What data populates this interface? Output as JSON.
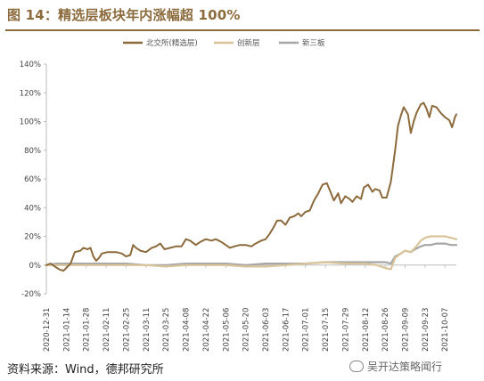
{
  "figure": {
    "title": "图 14：精选层板块年内涨幅超 100%",
    "source": "资料来源：Wind，德邦研究所",
    "watermark": "吴开达策略闻行",
    "watermark_icon": "wechat-icon"
  },
  "colors": {
    "beijing": "#8b6a3c",
    "chuangxin": "#d8c49a",
    "xinsanban": "#a6a6a6",
    "axis": "#bdbdbd",
    "title": "#8b6a3c"
  },
  "chart_data": {
    "type": "line",
    "title": "",
    "xlabel": "",
    "ylabel": "",
    "ylim": [
      -20,
      140
    ],
    "yticks": [
      -20,
      0,
      20,
      40,
      60,
      80,
      100,
      120,
      140
    ],
    "ytick_labels": [
      "-20%",
      "0%",
      "20%",
      "40%",
      "60%",
      "80%",
      "100%",
      "120%",
      "140%"
    ],
    "xlim": [
      "2020-12-31",
      "2021-10-15"
    ],
    "xticks": [
      "2020-12-31",
      "2021-01-14",
      "2021-01-28",
      "2021-02-11",
      "2021-02-25",
      "2021-03-11",
      "2021-03-25",
      "2021-04-08",
      "2021-04-22",
      "2021-05-06",
      "2021-05-20",
      "2021-06-03",
      "2021-06-17",
      "2021-07-01",
      "2021-07-15",
      "2021-07-29",
      "2021-08-12",
      "2021-08-26",
      "2021-09-09",
      "2021-09-23",
      "2021-10-07"
    ],
    "grid": false,
    "legend_position": "top-right",
    "series": [
      {
        "name": "北交所(精选层)",
        "color_key": "beijing",
        "points": [
          [
            "2020-12-31",
            0
          ],
          [
            "2021-01-03",
            1
          ],
          [
            "2021-01-06",
            -1
          ],
          [
            "2021-01-09",
            -3
          ],
          [
            "2021-01-12",
            -4
          ],
          [
            "2021-01-14",
            -2
          ],
          [
            "2021-01-17",
            1
          ],
          [
            "2021-01-20",
            9
          ],
          [
            "2021-01-24",
            10
          ],
          [
            "2021-01-26",
            12
          ],
          [
            "2021-01-29",
            11
          ],
          [
            "2021-01-31",
            12
          ],
          [
            "2021-02-02",
            6
          ],
          [
            "2021-02-04",
            3
          ],
          [
            "2021-02-06",
            5
          ],
          [
            "2021-02-08",
            8
          ],
          [
            "2021-02-12",
            9
          ],
          [
            "2021-02-18",
            9
          ],
          [
            "2021-02-22",
            8
          ],
          [
            "2021-02-25",
            6
          ],
          [
            "2021-02-28",
            7
          ],
          [
            "2021-03-02",
            14
          ],
          [
            "2021-03-04",
            12
          ],
          [
            "2021-03-07",
            10
          ],
          [
            "2021-03-11",
            9
          ],
          [
            "2021-03-15",
            12
          ],
          [
            "2021-03-18",
            13
          ],
          [
            "2021-03-21",
            15
          ],
          [
            "2021-03-24",
            11
          ],
          [
            "2021-03-28",
            12
          ],
          [
            "2021-04-01",
            13
          ],
          [
            "2021-04-05",
            13
          ],
          [
            "2021-04-08",
            18
          ],
          [
            "2021-04-11",
            17
          ],
          [
            "2021-04-15",
            14
          ],
          [
            "2021-04-18",
            16
          ],
          [
            "2021-04-22",
            18
          ],
          [
            "2021-04-26",
            17
          ],
          [
            "2021-04-29",
            18
          ],
          [
            "2021-05-03",
            16
          ],
          [
            "2021-05-06",
            14
          ],
          [
            "2021-05-09",
            12
          ],
          [
            "2021-05-12",
            13
          ],
          [
            "2021-05-16",
            14
          ],
          [
            "2021-05-20",
            14
          ],
          [
            "2021-05-24",
            13
          ],
          [
            "2021-05-27",
            15
          ],
          [
            "2021-05-31",
            17
          ],
          [
            "2021-06-03",
            18
          ],
          [
            "2021-06-06",
            22
          ],
          [
            "2021-06-09",
            27
          ],
          [
            "2021-06-11",
            31
          ],
          [
            "2021-06-14",
            31
          ],
          [
            "2021-06-17",
            28
          ],
          [
            "2021-06-20",
            33
          ],
          [
            "2021-06-23",
            34
          ],
          [
            "2021-06-26",
            36
          ],
          [
            "2021-06-28",
            34
          ],
          [
            "2021-07-01",
            37
          ],
          [
            "2021-07-04",
            38
          ],
          [
            "2021-07-07",
            45
          ],
          [
            "2021-07-10",
            50
          ],
          [
            "2021-07-13",
            56
          ],
          [
            "2021-07-16",
            57
          ],
          [
            "2021-07-19",
            50
          ],
          [
            "2021-07-21",
            45
          ],
          [
            "2021-07-24",
            50
          ],
          [
            "2021-07-26",
            43
          ],
          [
            "2021-07-29",
            48
          ],
          [
            "2021-08-01",
            46
          ],
          [
            "2021-08-03",
            44
          ],
          [
            "2021-08-06",
            48
          ],
          [
            "2021-08-09",
            46
          ],
          [
            "2021-08-11",
            54
          ],
          [
            "2021-08-14",
            56
          ],
          [
            "2021-08-17",
            51
          ],
          [
            "2021-08-19",
            53
          ],
          [
            "2021-08-22",
            52
          ],
          [
            "2021-08-24",
            47
          ],
          [
            "2021-08-27",
            47
          ],
          [
            "2021-08-30",
            58
          ],
          [
            "2021-09-02",
            80
          ],
          [
            "2021-09-04",
            97
          ],
          [
            "2021-09-06",
            104
          ],
          [
            "2021-09-08",
            110
          ],
          [
            "2021-09-11",
            105
          ],
          [
            "2021-09-13",
            92
          ],
          [
            "2021-09-15",
            100
          ],
          [
            "2021-09-17",
            106
          ],
          [
            "2021-09-20",
            112
          ],
          [
            "2021-09-22",
            113
          ],
          [
            "2021-09-24",
            109
          ],
          [
            "2021-09-26",
            103
          ],
          [
            "2021-09-28",
            111
          ],
          [
            "2021-10-01",
            110
          ],
          [
            "2021-10-04",
            106
          ],
          [
            "2021-10-07",
            103
          ],
          [
            "2021-10-10",
            101
          ],
          [
            "2021-10-12",
            96
          ],
          [
            "2021-10-14",
            103
          ],
          [
            "2021-10-15",
            105
          ]
        ]
      },
      {
        "name": "创新层",
        "color_key": "chuangxin",
        "points": [
          [
            "2020-12-31",
            0
          ],
          [
            "2021-01-14",
            0
          ],
          [
            "2021-01-28",
            0
          ],
          [
            "2021-02-11",
            0
          ],
          [
            "2021-02-25",
            0
          ],
          [
            "2021-03-11",
            0
          ],
          [
            "2021-03-25",
            -1
          ],
          [
            "2021-04-08",
            0
          ],
          [
            "2021-04-22",
            0
          ],
          [
            "2021-05-06",
            0
          ],
          [
            "2021-05-20",
            -1
          ],
          [
            "2021-06-03",
            -1
          ],
          [
            "2021-06-17",
            0
          ],
          [
            "2021-07-01",
            1
          ],
          [
            "2021-07-15",
            2
          ],
          [
            "2021-07-29",
            1
          ],
          [
            "2021-08-12",
            1
          ],
          [
            "2021-08-20",
            0
          ],
          [
            "2021-08-26",
            -2
          ],
          [
            "2021-08-30",
            -3
          ],
          [
            "2021-09-02",
            5
          ],
          [
            "2021-09-06",
            8
          ],
          [
            "2021-09-09",
            10
          ],
          [
            "2021-09-13",
            9
          ],
          [
            "2021-09-16",
            12
          ],
          [
            "2021-09-20",
            17
          ],
          [
            "2021-09-23",
            19
          ],
          [
            "2021-09-27",
            20
          ],
          [
            "2021-10-01",
            20
          ],
          [
            "2021-10-07",
            20
          ],
          [
            "2021-10-11",
            19
          ],
          [
            "2021-10-15",
            18
          ]
        ]
      },
      {
        "name": "新三板",
        "color_key": "xinsanban",
        "points": [
          [
            "2020-12-31",
            0
          ],
          [
            "2021-01-07",
            1
          ],
          [
            "2021-01-14",
            1
          ],
          [
            "2021-01-28",
            1
          ],
          [
            "2021-02-11",
            1
          ],
          [
            "2021-02-25",
            1
          ],
          [
            "2021-03-11",
            0
          ],
          [
            "2021-03-25",
            0
          ],
          [
            "2021-04-08",
            1
          ],
          [
            "2021-04-22",
            1
          ],
          [
            "2021-05-06",
            1
          ],
          [
            "2021-05-20",
            0
          ],
          [
            "2021-06-03",
            1
          ],
          [
            "2021-06-17",
            1
          ],
          [
            "2021-07-01",
            1
          ],
          [
            "2021-07-15",
            2
          ],
          [
            "2021-07-29",
            2
          ],
          [
            "2021-08-12",
            2
          ],
          [
            "2021-08-26",
            2
          ],
          [
            "2021-08-30",
            1
          ],
          [
            "2021-09-02",
            6
          ],
          [
            "2021-09-06",
            8
          ],
          [
            "2021-09-09",
            10
          ],
          [
            "2021-09-13",
            9
          ],
          [
            "2021-09-16",
            11
          ],
          [
            "2021-09-20",
            13
          ],
          [
            "2021-09-23",
            14
          ],
          [
            "2021-09-27",
            14
          ],
          [
            "2021-10-01",
            15
          ],
          [
            "2021-10-07",
            15
          ],
          [
            "2021-10-11",
            14
          ],
          [
            "2021-10-15",
            14
          ]
        ]
      }
    ]
  }
}
